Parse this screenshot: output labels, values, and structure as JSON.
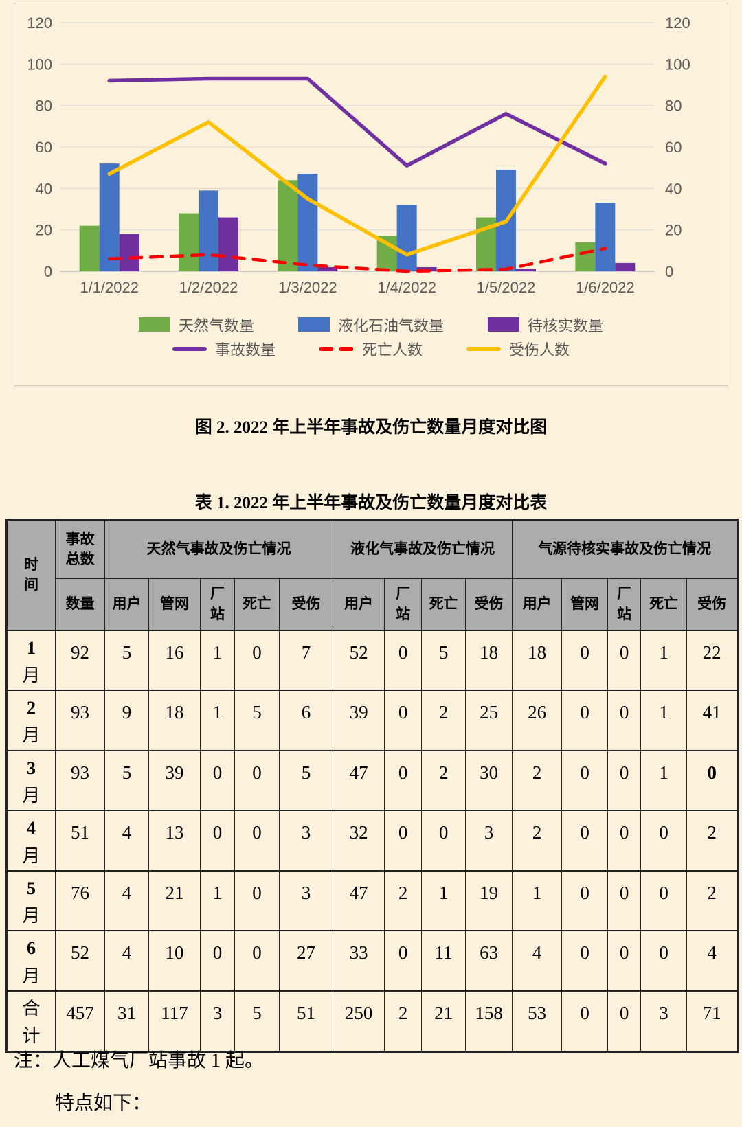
{
  "page": {
    "background_color": "#FCF2DC",
    "figure_caption": "图 2. 2022 年上半年事故及伤亡数量月度对比图",
    "table_caption": "表 1. 2022 年上半年事故及伤亡数量月度对比表",
    "note_line1": "注：人工煤气厂站事故 1 起。",
    "note_line2": "特点如下："
  },
  "chart_data": {
    "type": "combo bar+line",
    "categories": [
      "1/1/2022",
      "1/2/2022",
      "1/3/2022",
      "1/4/2022",
      "1/5/2022",
      "1/6/2022"
    ],
    "bar_series": [
      {
        "name": "天然气数量",
        "color": "#70AD47",
        "values": [
          22,
          28,
          44,
          17,
          26,
          14
        ]
      },
      {
        "name": "液化石油气数量",
        "color": "#4472C4",
        "values": [
          52,
          39,
          47,
          32,
          49,
          33
        ]
      },
      {
        "name": "待核实数量",
        "color": "#7030A0",
        "values": [
          18,
          26,
          2,
          2,
          1,
          4
        ]
      }
    ],
    "line_series": [
      {
        "name": "事故数量",
        "color": "#7030A0",
        "dashed": false,
        "values": [
          92,
          93,
          93,
          51,
          76,
          52
        ]
      },
      {
        "name": "死亡人数",
        "color": "#FF0000",
        "dashed": true,
        "values": [
          6,
          8,
          3,
          0,
          1,
          11
        ]
      },
      {
        "name": "受伤人数",
        "color": "#FFC000",
        "dashed": false,
        "values": [
          47,
          72,
          35,
          8,
          24,
          94
        ]
      }
    ],
    "y_axis": {
      "min": 0,
      "max": 120,
      "step": 20,
      "ticks": [
        0,
        20,
        40,
        60,
        80,
        100,
        120
      ],
      "dual": true
    },
    "grid": true,
    "legend_position": "bottom",
    "tick_color": "#595959",
    "gridline_color": "#D9D9D9",
    "axis_line_color": "#BFBFBF"
  },
  "table": {
    "corner_lines": [
      "时",
      "间"
    ],
    "total_top_lines": [
      "事故",
      "总数"
    ],
    "total_sub_label": "数量",
    "header_bg": "#ACACAC",
    "groups": [
      {
        "label": "天然气事故及伤亡情况",
        "cols": [
          [
            "用户"
          ],
          [
            "管网"
          ],
          [
            "厂",
            "站"
          ],
          [
            "死亡"
          ],
          [
            "受伤"
          ]
        ]
      },
      {
        "label": "液化气事故及伤亡情况",
        "cols": [
          [
            "用户"
          ],
          [
            "厂",
            "站"
          ],
          [
            "死亡"
          ],
          [
            "受伤"
          ]
        ]
      },
      {
        "label": "气源待核实事故及伤亡情况",
        "cols": [
          [
            "用户"
          ],
          [
            "管网"
          ],
          [
            "厂",
            "站"
          ],
          [
            "死亡"
          ],
          [
            "受伤"
          ]
        ]
      }
    ],
    "rows": [
      {
        "label_lines": [
          "1",
          "月"
        ],
        "values": [
          "92",
          "5",
          "16",
          "1",
          "0",
          "7",
          "52",
          "0",
          "5",
          "18",
          "18",
          "0",
          "0",
          "1",
          "22"
        ]
      },
      {
        "label_lines": [
          "2",
          "月"
        ],
        "values": [
          "93",
          "9",
          "18",
          "1",
          "5",
          "6",
          "39",
          "0",
          "2",
          "25",
          "26",
          "0",
          "0",
          "1",
          "41"
        ]
      },
      {
        "label_lines": [
          "3",
          "月"
        ],
        "values": [
          "93",
          "5",
          "39",
          "0",
          "0",
          "5",
          "47",
          "0",
          "2",
          "30",
          "2",
          "0",
          "0",
          "1",
          "0"
        ]
      },
      {
        "label_lines": [
          "4",
          "月"
        ],
        "values": [
          "51",
          "4",
          "13",
          "0",
          "0",
          "3",
          "32",
          "0",
          "0",
          "3",
          "2",
          "0",
          "0",
          "0",
          "2"
        ]
      },
      {
        "label_lines": [
          "5",
          "月"
        ],
        "values": [
          "76",
          "4",
          "21",
          "1",
          "0",
          "3",
          "47",
          "2",
          "1",
          "19",
          "1",
          "0",
          "0",
          "0",
          "2"
        ]
      },
      {
        "label_lines": [
          "6",
          "月"
        ],
        "values": [
          "52",
          "4",
          "10",
          "0",
          "0",
          "27",
          "33",
          "0",
          "11",
          "63",
          "4",
          "0",
          "0",
          "0",
          "4"
        ]
      },
      {
        "label_lines": [
          "合",
          "计"
        ],
        "values": [
          "457",
          "31",
          "117",
          "3",
          "5",
          "51",
          "250",
          "2",
          "21",
          "158",
          "53",
          "0",
          "0",
          "3",
          "71"
        ]
      }
    ],
    "bold_cells": [
      [
        2,
        14
      ]
    ]
  }
}
